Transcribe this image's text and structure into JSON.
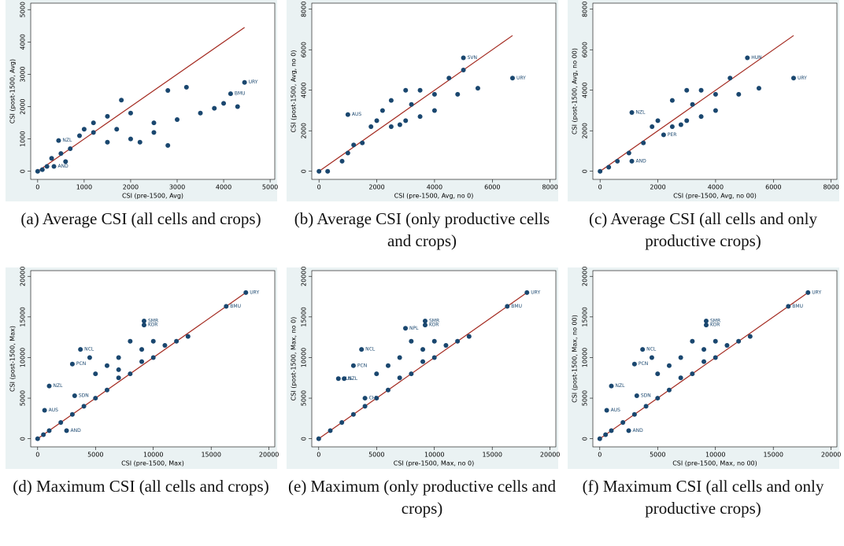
{
  "chart_data": [
    {
      "type": "scatter",
      "caption": "(a) Average CSI (all cells and crops)",
      "x_label": "CSI (pre-1500, Avg)",
      "y_label": "CSI (post-1500, Avg)",
      "xlim": [
        -150,
        5100
      ],
      "ylim": [
        -250,
        5200
      ],
      "xticks": [
        0,
        1000,
        2000,
        3000,
        4000,
        5000
      ],
      "yticks": [
        0,
        1000,
        2000,
        3000,
        4000,
        5000
      ],
      "series": [
        {
          "color": "#1a476f",
          "x": [
            4450,
            4150,
            450,
            350,
            0,
            100,
            200,
            300,
            500,
            700,
            900,
            1000,
            1200,
            1500,
            1800,
            2000,
            2500,
            3000,
            3500,
            4000,
            2800,
            3200,
            1500,
            2200,
            2800,
            2500,
            1200,
            1700,
            3800,
            4300,
            600,
            2000
          ],
          "y": [
            2750,
            2400,
            950,
            150,
            0,
            50,
            150,
            400,
            550,
            700,
            1100,
            1300,
            1500,
            1700,
            2200,
            1800,
            1500,
            1600,
            1800,
            2100,
            2500,
            2600,
            900,
            900,
            800,
            1200,
            1200,
            1300,
            1950,
            2000,
            300,
            1000
          ],
          "labels": [
            "URY",
            "BMU",
            "NZL",
            "AND",
            null,
            null,
            null,
            null,
            null,
            null,
            null,
            null,
            null,
            null,
            null,
            null,
            null,
            null,
            null,
            null,
            null,
            null,
            null,
            null,
            null,
            null,
            null,
            null,
            null,
            null,
            null,
            null
          ]
        }
      ],
      "reference_line": {
        "color": "#a3281e",
        "x": [
          0,
          4450
        ],
        "y": [
          0,
          4450
        ]
      }
    },
    {
      "type": "scatter",
      "caption": "(b) Average CSI (only productive cells and crops)",
      "x_label": "CSI (pre-1500, Avg, no 0)",
      "y_label": "CSI (post-1500, Avg, no 0)",
      "xlim": [
        -250,
        8200
      ],
      "ylim": [
        -400,
        8300
      ],
      "xticks": [
        0,
        2000,
        4000,
        6000,
        8000
      ],
      "yticks": [
        0,
        2000,
        4000,
        6000,
        8000
      ],
      "series": [
        {
          "color": "#1a476f",
          "x": [
            6700,
            1000,
            5000,
            0,
            300,
            800,
            1000,
            1500,
            2000,
            2200,
            2500,
            3000,
            3500,
            4000,
            4500,
            5000,
            5500,
            3000,
            3500,
            4000,
            2500,
            3200,
            4800,
            1800,
            1200,
            2800
          ],
          "y": [
            4600,
            2800,
            5600,
            0,
            0,
            500,
            900,
            1400,
            2500,
            3000,
            3500,
            4000,
            4000,
            3800,
            4600,
            5000,
            4100,
            2500,
            2700,
            3000,
            2200,
            3300,
            3800,
            2200,
            1300,
            2300
          ],
          "labels": [
            "URY",
            "AUS",
            "SVN",
            null,
            null,
            null,
            null,
            null,
            null,
            null,
            null,
            null,
            null,
            null,
            null,
            null,
            null,
            null,
            null,
            null,
            null,
            null,
            null,
            null,
            null,
            null
          ]
        }
      ],
      "reference_line": {
        "color": "#a3281e",
        "x": [
          0,
          6700
        ],
        "y": [
          0,
          6700
        ]
      }
    },
    {
      "type": "scatter",
      "caption": "(c) Average CSI (all cells and only productive crops)",
      "x_label": "CSI (pre-1500, Avg, no 00)",
      "y_label": "CSI (post-1500, Avg, no 00)",
      "xlim": [
        -250,
        8200
      ],
      "ylim": [
        -400,
        8300
      ],
      "xticks": [
        0,
        2000,
        4000,
        6000,
        8000
      ],
      "yticks": [
        0,
        2000,
        4000,
        6000,
        8000
      ],
      "series": [
        {
          "color": "#1a476f",
          "x": [
            6700,
            1100,
            2200,
            1100,
            5100,
            0,
            300,
            600,
            1000,
            1500,
            2000,
            2500,
            3000,
            3500,
            4000,
            4500,
            5500,
            3000,
            3500,
            4000,
            2500,
            3200,
            4800,
            1800,
            2800
          ],
          "y": [
            4600,
            2900,
            1800,
            500,
            5600,
            0,
            200,
            500,
            900,
            1400,
            2500,
            3500,
            4000,
            4000,
            3800,
            4600,
            4100,
            2500,
            2700,
            3000,
            2200,
            3300,
            3800,
            2200,
            2300
          ],
          "labels": [
            "URY",
            "NZL",
            "PER",
            "AND",
            "HUN",
            null,
            null,
            null,
            null,
            null,
            null,
            null,
            null,
            null,
            null,
            null,
            null,
            null,
            null,
            null,
            null,
            null,
            null,
            null,
            null
          ]
        }
      ],
      "reference_line": {
        "color": "#a3281e",
        "x": [
          0,
          6700
        ],
        "y": [
          0,
          6700
        ]
      }
    },
    {
      "type": "scatter",
      "caption": "(d) Maximum CSI (all cells and crops)",
      "x_label": "CSI (pre-1500, Max)",
      "y_label": "CSI (post-1500, Max)",
      "xlim": [
        -600,
        20500
      ],
      "ylim": [
        -1000,
        20700
      ],
      "xticks": [
        0,
        5000,
        10000,
        15000,
        20000
      ],
      "yticks": [
        0,
        5000,
        10000,
        15000,
        20000
      ],
      "series": [
        {
          "color": "#1a476f",
          "x": [
            18000,
            16300,
            1000,
            2500,
            9200,
            9200,
            3700,
            3000,
            3200,
            600,
            0,
            500,
            1000,
            2000,
            3000,
            4000,
            5000,
            6000,
            7000,
            8000,
            9000,
            10000,
            11000,
            12000,
            13000,
            6000,
            7000,
            8000,
            5000,
            4500,
            10000,
            9000,
            7000
          ],
          "y": [
            18000,
            16300,
            6500,
            1000,
            14500,
            14000,
            11000,
            9200,
            5300,
            3500,
            0,
            500,
            1000,
            2000,
            3000,
            4000,
            5000,
            6000,
            7500,
            8000,
            9500,
            10000,
            11500,
            12000,
            12600,
            9000,
            10000,
            12000,
            8000,
            10000,
            12000,
            11000,
            8500
          ],
          "labels": [
            "URY",
            "BMU",
            "NZL",
            "AND",
            "SMR",
            "KOR",
            "NCL",
            "PCN",
            "SDN",
            "AUS",
            null,
            null,
            null,
            null,
            null,
            null,
            null,
            null,
            null,
            null,
            null,
            null,
            null,
            null,
            null,
            null,
            null,
            null,
            null,
            null,
            null,
            null,
            null
          ]
        }
      ],
      "reference_line": {
        "color": "#a3281e",
        "x": [
          0,
          18000
        ],
        "y": [
          0,
          18000
        ]
      }
    },
    {
      "type": "scatter",
      "caption": "(e) Maximum (only productive cells and crops)",
      "x_label": "CSI (pre-1500, Max, no 0)",
      "y_label": "CSI (post-1500, Max, no 0)",
      "xlim": [
        -600,
        20500
      ],
      "ylim": [
        -1000,
        20700
      ],
      "xticks": [
        0,
        5000,
        10000,
        15000,
        20000
      ],
      "yticks": [
        0,
        5000,
        10000,
        15000,
        20000
      ],
      "series": [
        {
          "color": "#1a476f",
          "x": [
            18000,
            16300,
            7500,
            9200,
            9200,
            3700,
            3000,
            1700,
            2200,
            4000,
            0,
            1000,
            2000,
            3000,
            4000,
            5000,
            6000,
            7000,
            8000,
            9000,
            10000,
            11000,
            12000,
            13000,
            6000,
            7000,
            8000,
            5000,
            10000,
            9000
          ],
          "y": [
            18000,
            16300,
            13600,
            14500,
            14000,
            11000,
            9000,
            7400,
            7400,
            5000,
            0,
            1000,
            2000,
            3000,
            4000,
            5000,
            6000,
            7500,
            8000,
            9500,
            10000,
            11500,
            12000,
            12600,
            9000,
            10000,
            12000,
            8000,
            12000,
            11000
          ],
          "labels": [
            "URY",
            "BMU",
            "NPL",
            "SMR",
            "KOR",
            "NCL",
            "PCN",
            "AUS",
            "NZL",
            "CHL",
            null,
            null,
            null,
            null,
            null,
            null,
            null,
            null,
            null,
            null,
            null,
            null,
            null,
            null,
            null,
            null,
            null,
            null,
            null,
            null
          ]
        }
      ],
      "reference_line": {
        "color": "#a3281e",
        "x": [
          0,
          18000
        ],
        "y": [
          0,
          18000
        ]
      }
    },
    {
      "type": "scatter",
      "caption": "(f) Maximum CSI (all cells and only productive crops)",
      "x_label": "CSI (pre-1500, Max, no 00)",
      "y_label": "CSI (post-1500, Max, no 00)",
      "xlim": [
        -600,
        20500
      ],
      "ylim": [
        -1000,
        20700
      ],
      "xticks": [
        0,
        5000,
        10000,
        15000,
        20000
      ],
      "yticks": [
        0,
        5000,
        10000,
        15000,
        20000
      ],
      "series": [
        {
          "color": "#1a476f",
          "x": [
            18000,
            16300,
            1000,
            2500,
            9200,
            9200,
            3700,
            3000,
            3200,
            600,
            0,
            500,
            1000,
            2000,
            3000,
            4000,
            5000,
            6000,
            7000,
            8000,
            9000,
            10000,
            11000,
            12000,
            13000,
            6000,
            7000,
            8000,
            5000,
            4500,
            10000,
            9000
          ],
          "y": [
            18000,
            16300,
            6500,
            1000,
            14500,
            14000,
            11000,
            9200,
            5300,
            3500,
            0,
            500,
            1000,
            2000,
            3000,
            4000,
            5000,
            6000,
            7500,
            8000,
            9500,
            10000,
            11500,
            12000,
            12600,
            9000,
            10000,
            12000,
            8000,
            10000,
            12000,
            11000
          ],
          "labels": [
            "URY",
            "BMU",
            "NZL",
            "AND",
            "SMR",
            "KOR",
            "NCL",
            "PCN",
            "SDN",
            "AUS",
            null,
            null,
            null,
            null,
            null,
            null,
            null,
            null,
            null,
            null,
            null,
            null,
            null,
            null,
            null,
            null,
            null,
            null,
            null,
            null,
            null,
            null
          ]
        }
      ],
      "reference_line": {
        "color": "#a3281e",
        "x": [
          0,
          18000
        ],
        "y": [
          0,
          18000
        ]
      }
    }
  ]
}
